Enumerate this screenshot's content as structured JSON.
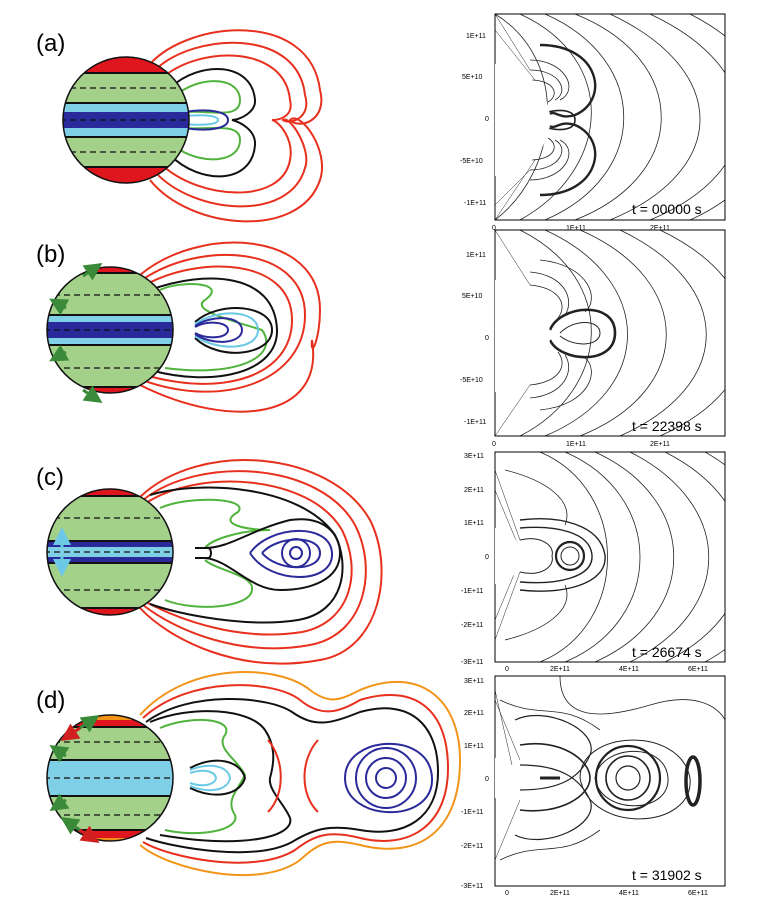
{
  "panels": [
    {
      "label": "(a)",
      "time": "t = 00000 s",
      "y_ticks": [
        "1E+11",
        "5E+10",
        "0",
        "-5E+10",
        "-1E+11"
      ],
      "x_ticks": [
        "0",
        "1E+11",
        "2E+11"
      ]
    },
    {
      "label": "(b)",
      "time": "t = 22398 s",
      "y_ticks": [
        "1E+11",
        "5E+10",
        "0",
        "-5E+10",
        "-1E+11"
      ],
      "x_ticks": [
        "0",
        "1E+11",
        "2E+11"
      ]
    },
    {
      "label": "(c)",
      "time": "t = 26674 s",
      "y_ticks": [
        "3E+11",
        "2E+11",
        "1E+11",
        "0",
        "-1E+11",
        "-2E+11",
        "-3E+11"
      ],
      "x_ticks": [
        "0",
        "2E+11",
        "4E+11",
        "6E+11"
      ]
    },
    {
      "label": "(d)",
      "time": "t = 31902 s",
      "y_ticks": [
        "3E+11",
        "2E+11",
        "1E+11",
        "0",
        "-1E+11",
        "-2E+11",
        "-3E+11"
      ],
      "x_ticks": [
        "0",
        "2E+11",
        "4E+11",
        "6E+11"
      ]
    }
  ],
  "colors": {
    "photosphere_green": "#a4d18a",
    "polar_red": "#e0161f",
    "equator_cyan": "#7fd0e6",
    "equator_blue": "#2a2a9a",
    "line_red": "#e8301e",
    "line_black": "#111111",
    "line_green": "#4fb33c",
    "line_blue": "#2a2a9a",
    "line_cyan": "#6cc9e6",
    "line_orange": "#f29418",
    "arrow_green": "#3a8a3a",
    "arrow_red": "#d02020",
    "arrow_cyan": "#6cc9e6"
  }
}
